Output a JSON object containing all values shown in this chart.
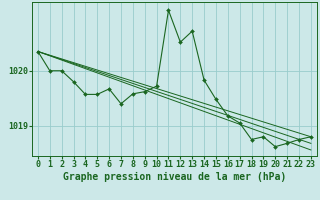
{
  "background_color": "#cce8e8",
  "grid_color": "#99cccc",
  "line_color": "#1a6620",
  "xlabel": "Graphe pression niveau de la mer (hPa)",
  "xlabel_fontsize": 7.0,
  "tick_label_fontsize": 6.0,
  "yticks": [
    1019,
    1020
  ],
  "ylim": [
    1018.45,
    1021.25
  ],
  "xlim": [
    -0.5,
    23.5
  ],
  "xticks": [
    0,
    1,
    2,
    3,
    4,
    5,
    6,
    7,
    8,
    9,
    10,
    11,
    12,
    13,
    14,
    15,
    16,
    17,
    18,
    19,
    20,
    21,
    22,
    23
  ],
  "y_main": [
    1020.35,
    1020.0,
    1020.0,
    1019.8,
    1019.57,
    1019.57,
    1019.67,
    1019.4,
    1019.58,
    1019.62,
    1019.72,
    1021.1,
    1020.52,
    1020.72,
    1019.83,
    1019.48,
    1019.18,
    1019.05,
    1018.75,
    1018.8,
    1018.62,
    1018.68,
    1018.75,
    1018.8
  ],
  "straight_lines": [
    {
      "x0": 0,
      "y0": 1020.35,
      "x1": 23,
      "y1": 1018.8
    },
    {
      "x0": 0,
      "y0": 1020.35,
      "x1": 23,
      "y1": 1018.68
    },
    {
      "x0": 0,
      "y0": 1020.35,
      "x1": 23,
      "y1": 1018.56
    }
  ]
}
